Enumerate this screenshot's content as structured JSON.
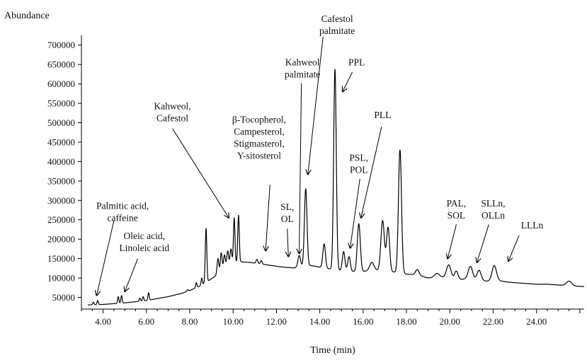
{
  "chart_data": {
    "type": "line",
    "title": "",
    "xlabel": "Time (min)",
    "ylabel": "Abundance",
    "xlim": [
      3.0,
      26.2
    ],
    "ylim": [
      20000,
      725000
    ],
    "x_ticks": [
      4,
      6,
      8,
      10,
      12,
      14,
      16,
      18,
      20,
      22,
      24
    ],
    "x_tick_labels": [
      "4.00",
      "6.00",
      "8.00",
      "10.00",
      "12.00",
      "14.00",
      "16.00",
      "18.00",
      "20.00",
      "22.00",
      "24.00"
    ],
    "y_ticks": [
      50000,
      100000,
      150000,
      200000,
      250000,
      300000,
      350000,
      400000,
      450000,
      500000,
      550000,
      600000,
      650000,
      700000
    ],
    "y_tick_labels": [
      "50000",
      "100000",
      "150000",
      "200000",
      "250000",
      "300000",
      "350000",
      "400000",
      "450000",
      "500000",
      "550000",
      "600000",
      "650000",
      "700000"
    ],
    "grid": false,
    "legend": "none",
    "line_color": "#000000",
    "baseline_points": [
      [
        3.0,
        30000
      ],
      [
        4.0,
        32000
      ],
      [
        5.0,
        36000
      ],
      [
        6.0,
        42000
      ],
      [
        7.0,
        52000
      ],
      [
        7.6,
        60000
      ],
      [
        8.0,
        68000
      ],
      [
        8.5,
        80000
      ],
      [
        9.0,
        98000
      ],
      [
        9.3,
        110000
      ],
      [
        9.6,
        128000
      ],
      [
        9.9,
        138000
      ],
      [
        10.3,
        142000
      ],
      [
        10.8,
        140000
      ],
      [
        11.3,
        136000
      ],
      [
        11.8,
        132000
      ],
      [
        12.3,
        128000
      ],
      [
        12.8,
        126000
      ],
      [
        13.2,
        130000
      ],
      [
        13.6,
        132000
      ],
      [
        14.0,
        128000
      ],
      [
        14.4,
        124000
      ],
      [
        14.9,
        120000
      ],
      [
        15.3,
        118000
      ],
      [
        15.7,
        116000
      ],
      [
        16.2,
        118000
      ],
      [
        16.6,
        120000
      ],
      [
        17.0,
        118000
      ],
      [
        17.5,
        115000
      ],
      [
        18.0,
        110000
      ],
      [
        18.5,
        108000
      ],
      [
        19.0,
        100000
      ],
      [
        19.5,
        104000
      ],
      [
        20.0,
        100000
      ],
      [
        20.4,
        96000
      ],
      [
        20.8,
        98000
      ],
      [
        21.3,
        96000
      ],
      [
        21.7,
        92000
      ],
      [
        22.2,
        94000
      ],
      [
        22.6,
        90000
      ],
      [
        23.0,
        88000
      ],
      [
        23.5,
        86000
      ],
      [
        24.0,
        84000
      ],
      [
        24.5,
        84000
      ],
      [
        25.0,
        82000
      ],
      [
        25.5,
        80000
      ],
      [
        26.2,
        78000
      ]
    ],
    "peaks": [
      [
        3.55,
        38000,
        0.03
      ],
      [
        3.75,
        42000,
        0.03
      ],
      [
        4.7,
        52000,
        0.03
      ],
      [
        4.85,
        55000,
        0.03
      ],
      [
        5.7,
        48000,
        0.03
      ],
      [
        5.85,
        52000,
        0.03
      ],
      [
        6.1,
        62000,
        0.03
      ],
      [
        6.6,
        45000,
        0.03
      ],
      [
        7.4,
        58000,
        0.03
      ],
      [
        7.9,
        70000,
        0.03
      ],
      [
        8.3,
        88000,
        0.03
      ],
      [
        8.55,
        100000,
        0.03
      ],
      [
        8.75,
        228000,
        0.035
      ],
      [
        9.3,
        150000,
        0.04
      ],
      [
        9.45,
        165000,
        0.04
      ],
      [
        9.6,
        160000,
        0.04
      ],
      [
        9.75,
        170000,
        0.04
      ],
      [
        9.9,
        175000,
        0.04
      ],
      [
        10.05,
        255000,
        0.035
      ],
      [
        10.25,
        262000,
        0.035
      ],
      [
        11.1,
        148000,
        0.04
      ],
      [
        11.3,
        145000,
        0.04
      ],
      [
        13.05,
        158000,
        0.06
      ],
      [
        13.35,
        330000,
        0.06
      ],
      [
        14.2,
        188000,
        0.06
      ],
      [
        14.7,
        638000,
        0.06
      ],
      [
        15.1,
        168000,
        0.06
      ],
      [
        15.35,
        155000,
        0.06
      ],
      [
        15.8,
        240000,
        0.07
      ],
      [
        16.4,
        140000,
        0.1
      ],
      [
        16.9,
        248000,
        0.08
      ],
      [
        17.15,
        230000,
        0.07
      ],
      [
        17.7,
        430000,
        0.07
      ],
      [
        18.5,
        122000,
        0.08
      ],
      [
        19.4,
        112000,
        0.1
      ],
      [
        19.95,
        134000,
        0.1
      ],
      [
        20.3,
        118000,
        0.08
      ],
      [
        20.95,
        130000,
        0.1
      ],
      [
        21.35,
        120000,
        0.09
      ],
      [
        22.05,
        132000,
        0.1
      ],
      [
        25.5,
        92000,
        0.12
      ]
    ],
    "annotations": [
      {
        "lines": [
          "Palmitic acid,",
          "caffeine"
        ],
        "text_x": 4.9,
        "text_y": 278000,
        "arrow_from": [
          4.5,
          248000
        ],
        "arrow_to": [
          3.7,
          55000
        ]
      },
      {
        "lines": [
          "Oleic acid,",
          "Linoleic acid"
        ],
        "text_x": 5.9,
        "text_y": 200000,
        "arrow_from": [
          5.6,
          150000
        ],
        "arrow_to": [
          5.0,
          65000
        ]
      },
      {
        "lines": [
          "Kahweol,",
          "Cafestol"
        ],
        "text_x": 7.2,
        "text_y": 535000,
        "arrow_from": [
          7.2,
          485000
        ],
        "arrow_to": [
          9.8,
          255000
        ]
      },
      {
        "lines": [
          "β-Tocopherol,",
          "Campesterol,",
          "Stigmasterol,",
          "Y-sitosterol"
        ],
        "text_x": 11.2,
        "text_y": 500000,
        "arrow_from": [
          11.7,
          340000
        ],
        "arrow_to": [
          11.5,
          170000
        ]
      },
      {
        "lines": [
          "SL,",
          "OL"
        ],
        "text_x": 12.5,
        "text_y": 275000,
        "arrow_from": [
          12.5,
          227000
        ],
        "arrow_to": [
          12.55,
          155000
        ]
      },
      {
        "lines": [
          "Kahweol",
          "palmitate"
        ],
        "text_x": 13.2,
        "text_y": 648000,
        "arrow_from": [
          13.15,
          602000
        ],
        "arrow_to": [
          13.05,
          163000
        ]
      },
      {
        "lines": [
          "Cafestol",
          "palmitate"
        ],
        "text_x": 14.8,
        "text_y": 760000,
        "arrow_from": [
          14.15,
          722000
        ],
        "arrow_to": [
          13.45,
          367000
        ]
      },
      {
        "lines": [
          "PPL"
        ],
        "text_x": 15.7,
        "text_y": 648000,
        "arrow_from": [
          15.5,
          630000
        ],
        "arrow_to": [
          15.05,
          580000
        ]
      },
      {
        "lines": [
          "PSL,",
          "POL"
        ],
        "text_x": 15.8,
        "text_y": 402000,
        "arrow_from": [
          15.85,
          355000
        ],
        "arrow_to": [
          15.4,
          177000
        ]
      },
      {
        "lines": [
          "PLL"
        ],
        "text_x": 16.9,
        "text_y": 512000,
        "arrow_from": [
          16.85,
          490000
        ],
        "arrow_to": [
          15.9,
          255000
        ]
      },
      {
        "lines": [
          "PAL,",
          "SOL"
        ],
        "text_x": 20.3,
        "text_y": 284000,
        "arrow_from": [
          20.3,
          238000
        ],
        "arrow_to": [
          19.9,
          150000
        ]
      },
      {
        "lines": [
          "SLLn,",
          "OLLn"
        ],
        "text_x": 22.0,
        "text_y": 284000,
        "arrow_from": [
          21.8,
          238000
        ],
        "arrow_to": [
          21.25,
          140000
        ]
      },
      {
        "lines": [
          "LLLn"
        ],
        "text_x": 23.8,
        "text_y": 228000,
        "arrow_from": [
          23.2,
          210000
        ],
        "arrow_to": [
          22.7,
          143000
        ]
      }
    ]
  }
}
